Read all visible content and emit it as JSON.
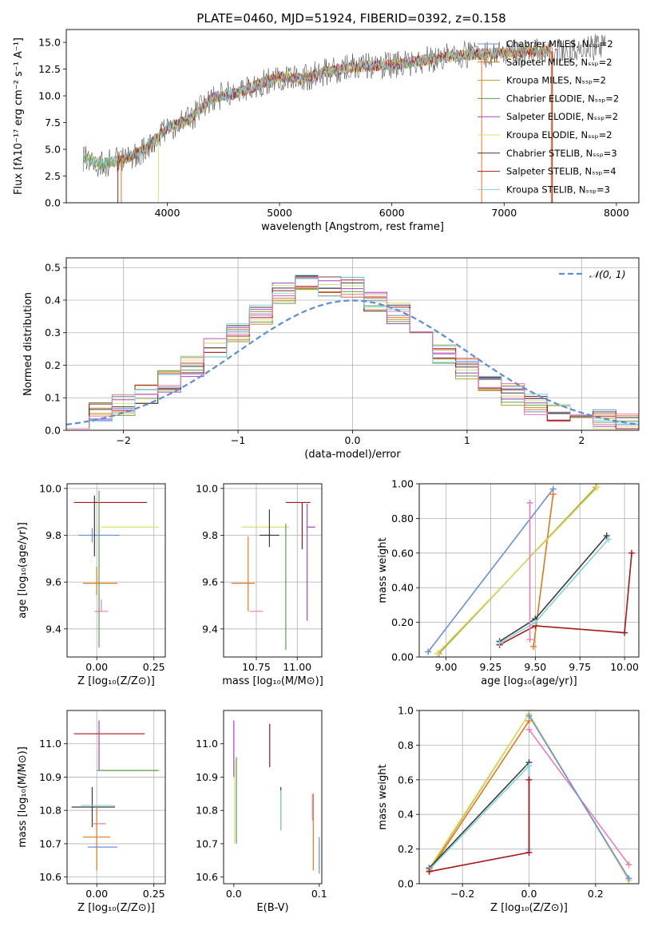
{
  "page": {
    "title": "PLATE=0460, MJD=51924, FIBERID=0392, z=0.158"
  },
  "legend_series": [
    {
      "name": "Chabrier MILES, Nₛₛₚ=2",
      "color": "#6a8fd6"
    },
    {
      "name": "Salpeter MILES, Nₛₛₚ=2",
      "color": "#e0791a"
    },
    {
      "name": "Kroupa MILES, Nₛₛₚ=2",
      "color": "#b59a2a"
    },
    {
      "name": "Chabrier ELODIE, Nₛₛₚ=2",
      "color": "#5f9e50"
    },
    {
      "name": "Salpeter ELODIE, Nₛₛₚ=2",
      "color": "#a245c0"
    },
    {
      "name": "Kroupa ELODIE, Nₛₛₚ=2",
      "color": "#d9e070"
    },
    {
      "name": "Chabrier STELIB, Nₛₛₚ=3",
      "color": "#3a3a3a"
    },
    {
      "name": "Salpeter STELIB, Nₛₛₚ=4",
      "color": "#a81818"
    },
    {
      "name": "Kroupa STELIB, Nₛₛₚ=3",
      "color": "#86d2e0"
    }
  ],
  "chart_data": [
    {
      "id": "spectrum",
      "type": "line",
      "title": "PLATE=0460, MJD=51924, FIBERID=0392, z=0.158",
      "xlabel": "wavelength [Angstrom, rest frame]",
      "ylabel": "Flux [fλ10⁻¹⁷ erg cm⁻² s⁻¹ A⁻¹]",
      "xlim": [
        3100,
        8200
      ],
      "ylim": [
        0,
        16.2
      ],
      "xticks": [
        4000,
        5000,
        6000,
        7000,
        8000
      ],
      "yticks": [
        0.0,
        2.5,
        5.0,
        7.5,
        10.0,
        12.5,
        15.0
      ],
      "data_envelope": {
        "x": [
          3250,
          3400,
          3600,
          3800,
          4000,
          4200,
          4400,
          4600,
          4800,
          5000,
          5200,
          5400,
          5600,
          5800,
          6000,
          6200,
          6400,
          6600,
          6800,
          7000,
          7200,
          7400,
          7600,
          7800
        ],
        "y": [
          4.2,
          3.6,
          4.0,
          5.0,
          7.0,
          7.8,
          9.8,
          10.2,
          11.0,
          11.8,
          11.6,
          12.2,
          12.6,
          12.8,
          12.9,
          13.2,
          13.5,
          13.8,
          13.9,
          14.0,
          14.1,
          14.2,
          14.1,
          14.5
        ]
      },
      "grid": false,
      "legend": "upper right"
    },
    {
      "id": "residuals",
      "type": "histogram",
      "xlabel": "(data-model)/error",
      "ylabel": "Normed distribution",
      "xlim": [
        -2.5,
        2.5
      ],
      "ylim": [
        0,
        0.53
      ],
      "xticks": [
        -2,
        -1,
        0,
        1,
        2
      ],
      "yticks": [
        0.0,
        0.1,
        0.2,
        0.3,
        0.4,
        0.5
      ],
      "bins_center": [
        -2.4,
        -2.2,
        -2.0,
        -1.8,
        -1.6,
        -1.4,
        -1.2,
        -1.0,
        -0.8,
        -0.6,
        -0.4,
        -0.2,
        0.0,
        0.2,
        0.4,
        0.6,
        0.8,
        1.0,
        1.2,
        1.4,
        1.6,
        1.8,
        2.0,
        2.2,
        2.4
      ],
      "hist_values": [
        0.03,
        0.05,
        0.08,
        0.11,
        0.15,
        0.2,
        0.25,
        0.3,
        0.35,
        0.42,
        0.45,
        0.44,
        0.44,
        0.4,
        0.36,
        0.3,
        0.24,
        0.19,
        0.14,
        0.11,
        0.08,
        0.06,
        0.04,
        0.03,
        0.02
      ],
      "reference": {
        "label": "𝒩(0, 1)",
        "color": "#5b8ed6",
        "style": "dashed"
      },
      "grid": true,
      "legend": "upper right"
    },
    {
      "id": "age_vs_Z",
      "type": "errorbar",
      "xlabel": "Z [log₁₀(Z/Z⊙)]",
      "ylabel": "age  [log₁₀(age/yr)]",
      "xlim": [
        -0.13,
        0.3
      ],
      "ylim": [
        9.28,
        10.02
      ],
      "xticks": [
        0.0,
        0.25
      ],
      "yticks": [
        9.4,
        9.6,
        9.8,
        10.0
      ],
      "points": [
        {
          "x": 0.05,
          "xerr": [
            0.15,
            0.17
          ],
          "y": 9.94,
          "yerr": [
            0.0,
            0.0
          ],
          "color": "#a81818"
        },
        {
          "x": -0.02,
          "xerr": [
            0.06,
            0.12
          ],
          "y": 9.8,
          "yerr": [
            0.03,
            0.03
          ],
          "color": "#6a8fd6"
        },
        {
          "x": 0.1,
          "xerr": [
            0.08,
            0.17
          ],
          "y": 9.835,
          "yerr": [
            0.0,
            0.0
          ],
          "color": "#d9e070"
        },
        {
          "x": 0.0,
          "xerr": [
            0.06,
            0.09
          ],
          "y": 9.595,
          "yerr": [
            0.05,
            0.07
          ],
          "color": "#e0791a"
        },
        {
          "x": 0.02,
          "xerr": [
            0.03,
            0.03
          ],
          "y": 9.475,
          "yerr": [
            0.0,
            0.05
          ],
          "color": "#e87fb8"
        },
        {
          "x": -0.01,
          "xerr": [
            0.0,
            0.0
          ],
          "y": 9.85,
          "yerr": [
            0.14,
            0.12
          ],
          "color": "#3a3a3a"
        },
        {
          "x": 0.01,
          "xerr": [
            0.0,
            0.0
          ],
          "y": 9.6,
          "yerr": [
            0.28,
            0.39
          ],
          "color": "#5f9e50"
        }
      ],
      "grid": true
    },
    {
      "id": "age_vs_mass",
      "type": "errorbar",
      "xlabel": "mass [log₁₀(M/M⊙)]",
      "ylabel": "",
      "xlim": [
        10.55,
        11.15
      ],
      "ylim": [
        9.28,
        10.02
      ],
      "xticks": [
        10.75,
        11.0
      ],
      "yticks": [
        9.4,
        9.6,
        9.8,
        10.0
      ],
      "points": [
        {
          "x": 10.8,
          "xerr": [
            0.14,
            0.15
          ],
          "y": 9.835,
          "yerr": [
            0.0,
            0.0
          ],
          "color": "#d9e070"
        },
        {
          "x": 10.83,
          "xerr": [
            0.06,
            0.06
          ],
          "y": 9.8,
          "yerr": [
            0.05,
            0.11
          ],
          "color": "#3a3a3a"
        },
        {
          "x": 10.7,
          "xerr": [
            0.1,
            0.04
          ],
          "y": 9.595,
          "yerr": [
            0.12,
            0.2
          ],
          "color": "#e0791a"
        },
        {
          "x": 10.76,
          "xerr": [
            0.05,
            0.03
          ],
          "y": 9.475,
          "yerr": [
            0.0,
            0.0
          ],
          "color": "#e87fb8"
        },
        {
          "x": 11.03,
          "xerr": [
            0.1,
            0.05
          ],
          "y": 9.94,
          "yerr": [
            0.2,
            0.0
          ],
          "color": "#a81818"
        },
        {
          "x": 11.06,
          "xerr": [
            0.0,
            0.05
          ],
          "y": 9.835,
          "yerr": [
            0.4,
            0.1
          ],
          "color": "#a245c0"
        },
        {
          "x": 10.93,
          "xerr": [
            0.0,
            0.0
          ],
          "y": 9.6,
          "yerr": [
            0.29,
            0.25
          ],
          "color": "#5f9e50"
        }
      ],
      "grid": true
    },
    {
      "id": "weight_vs_age",
      "type": "line",
      "xlabel": "age  [log₁₀(age/yr)]",
      "ylabel": "mass weight",
      "xlim": [
        8.85,
        10.08
      ],
      "ylim": [
        0,
        1.0
      ],
      "xticks": [
        9.0,
        9.25,
        9.5,
        9.75,
        10.0
      ],
      "yticks": [
        0.0,
        0.2,
        0.4,
        0.6,
        0.8,
        1.0
      ],
      "series": [
        {
          "name": "Chabrier MILES",
          "color": "#6a8fd6",
          "x": [
            8.9,
            9.6
          ],
          "y": [
            0.03,
            0.97
          ]
        },
        {
          "name": "Salpeter MILES",
          "color": "#e0791a",
          "x": [
            9.49,
            9.6
          ],
          "y": [
            0.06,
            0.94
          ]
        },
        {
          "name": "Kroupa MILES",
          "color": "#b59a2a",
          "x": [
            8.96,
            9.84
          ],
          "y": [
            0.02,
            0.98
          ]
        },
        {
          "name": "Kroupa ELODIE",
          "color": "#d9e070",
          "x": [
            8.95,
            9.85
          ],
          "y": [
            0.02,
            0.98
          ]
        },
        {
          "name": "Chabrier STELIB",
          "color": "#3a3a3a",
          "x": [
            9.3,
            9.5,
            9.9
          ],
          "y": [
            0.09,
            0.22,
            0.7
          ]
        },
        {
          "name": "Salpeter STELIB",
          "color": "#a81818",
          "x": [
            9.3,
            9.5,
            10.0,
            10.04
          ],
          "y": [
            0.07,
            0.18,
            0.14,
            0.6
          ]
        },
        {
          "name": "Kroupa STELIB",
          "color": "#86d2e0",
          "x": [
            9.3,
            9.5,
            9.91
          ],
          "y": [
            0.08,
            0.2,
            0.68
          ]
        },
        {
          "name": "Salpeter ELODIE",
          "color": "#e87fb8",
          "x": [
            9.47,
            9.47
          ],
          "y": [
            0.1,
            0.89
          ]
        }
      ],
      "grid": true
    },
    {
      "id": "mass_vs_Z",
      "type": "errorbar",
      "xlabel": "Z [log₁₀(Z/Z⊙)]",
      "ylabel": "mass [log₁₀(M/M⊙)]",
      "xlim": [
        -0.13,
        0.3
      ],
      "ylim": [
        10.58,
        11.1
      ],
      "xticks": [
        0.0,
        0.25
      ],
      "yticks": [
        10.6,
        10.7,
        10.8,
        10.9,
        11.0
      ],
      "points": [
        {
          "x": 0.05,
          "xerr": [
            0.15,
            0.16
          ],
          "y": 11.03,
          "yerr": [
            0.0,
            0.0
          ],
          "color": "#a81818"
        },
        {
          "x": 0.12,
          "xerr": [
            0.1,
            0.16
          ],
          "y": 10.92,
          "yerr": [
            0.0,
            0.0
          ],
          "color": "#d9e070"
        },
        {
          "x": 0.08,
          "xerr": [
            0.08,
            0.19
          ],
          "y": 10.92,
          "yerr": [
            0.0,
            0.0
          ],
          "color": "#5f9e50"
        },
        {
          "x": -0.02,
          "xerr": [
            0.09,
            0.1
          ],
          "y": 10.81,
          "yerr": [
            0.06,
            0.06
          ],
          "color": "#3a3a3a"
        },
        {
          "x": -0.01,
          "xerr": [
            0.06,
            0.09
          ],
          "y": 10.815,
          "yerr": [
            0.0,
            0.0
          ],
          "color": "#86d2e0"
        },
        {
          "x": 0.01,
          "xerr": [
            0.03,
            0.03
          ],
          "y": 10.76,
          "yerr": [
            0.0,
            0.0
          ],
          "color": "#e87fb8"
        },
        {
          "x": 0.0,
          "xerr": [
            0.06,
            0.06
          ],
          "y": 10.72,
          "yerr": [
            0.1,
            0.09
          ],
          "color": "#e0791a"
        },
        {
          "x": 0.02,
          "xerr": [
            0.06,
            0.07
          ],
          "y": 10.69,
          "yerr": [
            0.0,
            0.0
          ],
          "color": "#6a8fd6"
        },
        {
          "x": 0.01,
          "xerr": [
            0.0,
            0.0
          ],
          "y": 10.99,
          "yerr": [
            0.07,
            0.08
          ],
          "color": "#a245c0"
        }
      ],
      "grid": true
    },
    {
      "id": "mass_vs_EBV",
      "type": "errorbar",
      "xlabel": "E(B-V)",
      "ylabel": "",
      "xlim": [
        -0.012,
        0.103
      ],
      "ylim": [
        10.58,
        11.1
      ],
      "xticks": [
        0.0,
        0.1
      ],
      "yticks": [
        10.6,
        10.7,
        10.8,
        10.9,
        11.0
      ],
      "points": [
        {
          "x": 0.0,
          "y": 11.0,
          "yerr": [
            0.1,
            0.07
          ],
          "color": "#a245c0"
        },
        {
          "x": 0.001,
          "y": 10.9,
          "yerr": [
            0.2,
            0.05
          ],
          "color": "#d9e070"
        },
        {
          "x": 0.003,
          "y": 10.9,
          "yerr": [
            0.2,
            0.06
          ],
          "color": "#5f9e50"
        },
        {
          "x": 0.042,
          "y": 11.03,
          "yerr": [
            0.1,
            0.03
          ],
          "color": "#a81818"
        },
        {
          "x": 0.055,
          "y": 10.8,
          "yerr": [
            0.06,
            0.07
          ],
          "color": "#3a3a3a"
        },
        {
          "x": 0.055,
          "y": 10.8,
          "yerr": [
            0.06,
            0.06
          ],
          "color": "#86d2e0"
        },
        {
          "x": 0.093,
          "y": 10.77,
          "yerr": [
            0.15,
            0.08
          ],
          "color": "#e0791a"
        },
        {
          "x": 0.092,
          "y": 10.77,
          "yerr": [
            0.0,
            0.08
          ],
          "color": "#e87fb8"
        },
        {
          "x": 0.1,
          "y": 10.67,
          "yerr": [
            0.06,
            0.05
          ],
          "color": "#6a8fd6"
        }
      ],
      "grid": false
    },
    {
      "id": "weight_vs_Z",
      "type": "line",
      "xlabel": "Z [log₁₀(Z/Z⊙)]",
      "ylabel": "mass weight",
      "xlim": [
        -0.33,
        0.33
      ],
      "ylim": [
        0,
        1.0
      ],
      "xticks": [
        -0.2,
        0.0,
        0.2
      ],
      "yticks": [
        0.0,
        0.2,
        0.4,
        0.6,
        0.8,
        1.0
      ],
      "series": [
        {
          "name": "Salpeter MILES",
          "color": "#e0791a",
          "x": [
            -0.3,
            0.0
          ],
          "y": [
            0.07,
            0.94
          ]
        },
        {
          "name": "Kroupa MILES",
          "color": "#b59a2a",
          "x": [
            -0.3,
            0.0,
            0.3
          ],
          "y": [
            0.08,
            0.98,
            0.02
          ]
        },
        {
          "name": "Kroupa ELODIE",
          "color": "#d9e070",
          "x": [
            -0.3,
            0.0,
            0.3
          ],
          "y": [
            0.09,
            0.98,
            0.02
          ]
        },
        {
          "name": "Salpeter ELODIE",
          "color": "#e87fb8",
          "x": [
            0.0,
            0.3
          ],
          "y": [
            0.89,
            0.11
          ]
        },
        {
          "name": "Chabrier STELIB",
          "color": "#3a3a3a",
          "x": [
            -0.3,
            0.0,
            0.0
          ],
          "y": [
            0.09,
            0.7,
            0.2
          ]
        },
        {
          "name": "Kroupa STELIB",
          "color": "#86d2e0",
          "x": [
            -0.3,
            0.0,
            0.0
          ],
          "y": [
            0.08,
            0.68,
            0.2
          ]
        },
        {
          "name": "Salpeter STELIB",
          "color": "#a81818",
          "x": [
            -0.3,
            0.0,
            0.0
          ],
          "y": [
            0.07,
            0.18,
            0.6
          ]
        },
        {
          "name": "Chabrier MILES",
          "color": "#6a8fd6",
          "x": [
            0.0,
            0.3
          ],
          "y": [
            0.97,
            0.03
          ]
        }
      ],
      "grid": true
    }
  ]
}
